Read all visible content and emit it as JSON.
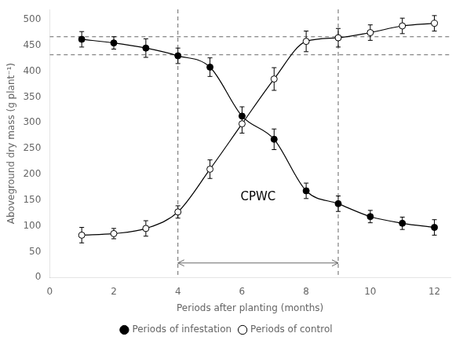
{
  "chart_data": {
    "type": "scatter",
    "xlabel": "Periods after planting (months)",
    "ylabel": "Aboveground dry mass (g plant⁻¹)",
    "xlim": [
      0,
      12.5
    ],
    "ylim": [
      0,
      520
    ],
    "xticks": [
      0,
      2,
      4,
      6,
      8,
      10,
      12
    ],
    "yticks": [
      0,
      50,
      100,
      150,
      200,
      250,
      300,
      350,
      400,
      450,
      500
    ],
    "grid": false,
    "legend": "bottom",
    "series": [
      {
        "name": "Periods of infestation",
        "color": "#000000",
        "marker": "circle",
        "line_style": "solid",
        "x": [
          1,
          2,
          3,
          4,
          5,
          6,
          7,
          8,
          9,
          10,
          11,
          12
        ],
        "values": [
          462,
          455,
          445,
          430,
          408,
          313,
          268,
          168,
          143,
          118,
          105,
          97
        ],
        "yerr": [
          15,
          12,
          18,
          15,
          18,
          18,
          20,
          15,
          15,
          12,
          12,
          15
        ]
      },
      {
        "name": "Periods of control",
        "color": "#000000",
        "marker": "open circle",
        "line_style": "solid",
        "x": [
          1,
          2,
          3,
          4,
          5,
          6,
          7,
          8,
          9,
          10,
          11,
          12
        ],
        "values": [
          82,
          85,
          95,
          127,
          210,
          298,
          385,
          458,
          465,
          475,
          488,
          493
        ],
        "yerr": [
          15,
          10,
          15,
          12,
          18,
          18,
          22,
          20,
          18,
          15,
          15,
          15
        ]
      }
    ],
    "hlines": [
      432,
      467
    ],
    "vlines": [
      4,
      9
    ],
    "annotations": [
      {
        "text": "CPWC",
        "x": 6.5,
        "y": 155
      }
    ],
    "arrows": [
      {
        "x1": 4,
        "x2": 9,
        "y": 28
      }
    ]
  }
}
